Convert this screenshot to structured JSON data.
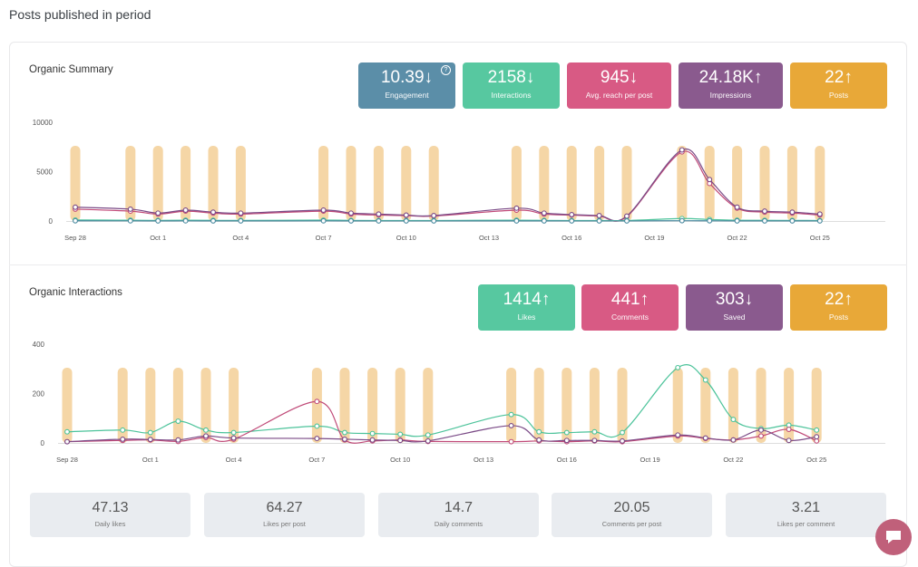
{
  "page": {
    "title": "Posts published in period"
  },
  "summary": {
    "title": "Organic Summary",
    "kpis": [
      {
        "value": "10.39",
        "arrow": "↓",
        "label": "Engagement",
        "color": "#5b8ea8"
      },
      {
        "value": "2158",
        "arrow": "↓",
        "label": "Interactions",
        "color": "#57c8a0"
      },
      {
        "value": "945",
        "arrow": "↓",
        "label": "Avg. reach per post",
        "color": "#d85a84"
      },
      {
        "value": "24.18K",
        "arrow": "↑",
        "label": "Impressions",
        "color": "#8a5a8e"
      },
      {
        "value": "22",
        "arrow": "↑",
        "label": "Posts",
        "color": "#e8a838"
      }
    ],
    "info_icon": "?"
  },
  "interactions": {
    "title": "Organic Interactions",
    "kpis": [
      {
        "value": "1414",
        "arrow": "↑",
        "label": "Likes",
        "color": "#57c8a0"
      },
      {
        "value": "441",
        "arrow": "↑",
        "label": "Comments",
        "color": "#d85a84"
      },
      {
        "value": "303",
        "arrow": "↓",
        "label": "Saved",
        "color": "#8a5a8e"
      },
      {
        "value": "22",
        "arrow": "↑",
        "label": "Posts",
        "color": "#e8a838"
      }
    ]
  },
  "stats": [
    {
      "value": "47.13",
      "label": "Daily likes"
    },
    {
      "value": "64.27",
      "label": "Likes per post"
    },
    {
      "value": "14.7",
      "label": "Daily comments"
    },
    {
      "value": "20.05",
      "label": "Comments per post"
    },
    {
      "value": "3.21",
      "label": "Likes per comment"
    }
  ],
  "chart_data": [
    {
      "type": "line",
      "title": "Organic Summary",
      "x_tick_labels": [
        "Sep 28",
        "Oct 1",
        "Oct 4",
        "Oct 7",
        "Oct 10",
        "Oct 13",
        "Oct 16",
        "Oct 19",
        "Oct 22",
        "Oct 25"
      ],
      "y_ticks": [
        0,
        5000,
        10000
      ],
      "ylim": [
        0,
        10000
      ],
      "post_bar_days": [
        0,
        2,
        3,
        4,
        5,
        6,
        9,
        10,
        11,
        12,
        13,
        16,
        17,
        18,
        19,
        20,
        22,
        23,
        24,
        25,
        26,
        27
      ],
      "bar_color": "#f5d6a6",
      "series": [
        {
          "name": "Reach",
          "color": "#c04a78",
          "points": [
            [
              0,
              1200
            ],
            [
              2,
              1000
            ],
            [
              3,
              700
            ],
            [
              4,
              1000
            ],
            [
              5,
              800
            ],
            [
              6,
              700
            ],
            [
              9,
              1000
            ],
            [
              10,
              700
            ],
            [
              11,
              600
            ],
            [
              12,
              550
            ],
            [
              13,
              500
            ],
            [
              16,
              1100
            ],
            [
              17,
              700
            ],
            [
              18,
              600
            ],
            [
              19,
              500
            ],
            [
              20,
              450
            ],
            [
              22,
              7000
            ],
            [
              23,
              3800
            ],
            [
              24,
              1300
            ],
            [
              25,
              900
            ],
            [
              26,
              800
            ],
            [
              27,
              600
            ]
          ]
        },
        {
          "name": "Impressions",
          "color": "#7a4a86",
          "points": [
            [
              0,
              1400
            ],
            [
              2,
              1200
            ],
            [
              3,
              800
            ],
            [
              4,
              1100
            ],
            [
              5,
              900
            ],
            [
              6,
              800
            ],
            [
              9,
              1100
            ],
            [
              10,
              800
            ],
            [
              11,
              700
            ],
            [
              12,
              600
            ],
            [
              13,
              550
            ],
            [
              16,
              1300
            ],
            [
              17,
              800
            ],
            [
              18,
              650
            ],
            [
              19,
              550
            ],
            [
              20,
              500
            ],
            [
              22,
              7200
            ],
            [
              23,
              4200
            ],
            [
              24,
              1400
            ],
            [
              25,
              1000
            ],
            [
              26,
              900
            ],
            [
              27,
              700
            ]
          ]
        },
        {
          "name": "Interactions",
          "color": "#4cc39a",
          "points": [
            [
              0,
              100
            ],
            [
              2,
              80
            ],
            [
              3,
              60
            ],
            [
              4,
              80
            ],
            [
              5,
              70
            ],
            [
              6,
              60
            ],
            [
              9,
              90
            ],
            [
              10,
              60
            ],
            [
              11,
              50
            ],
            [
              12,
              50
            ],
            [
              13,
              50
            ],
            [
              16,
              80
            ],
            [
              17,
              60
            ],
            [
              18,
              50
            ],
            [
              19,
              50
            ],
            [
              20,
              50
            ],
            [
              22,
              250
            ],
            [
              23,
              150
            ],
            [
              24,
              80
            ],
            [
              25,
              70
            ],
            [
              26,
              60
            ],
            [
              27,
              50
            ]
          ]
        },
        {
          "name": "Engagement",
          "color": "#4a8aa0",
          "points": [
            [
              0,
              20
            ],
            [
              2,
              15
            ],
            [
              3,
              10
            ],
            [
              4,
              15
            ],
            [
              5,
              12
            ],
            [
              6,
              10
            ],
            [
              9,
              15
            ],
            [
              10,
              10
            ],
            [
              11,
              8
            ],
            [
              12,
              8
            ],
            [
              13,
              8
            ],
            [
              16,
              12
            ],
            [
              17,
              10
            ],
            [
              18,
              8
            ],
            [
              19,
              8
            ],
            [
              20,
              8
            ],
            [
              22,
              30
            ],
            [
              23,
              20
            ],
            [
              24,
              12
            ],
            [
              25,
              10
            ],
            [
              26,
              10
            ],
            [
              27,
              8
            ]
          ]
        }
      ]
    },
    {
      "type": "line",
      "title": "Organic Interactions",
      "x_tick_labels": [
        "Sep 28",
        "Oct 1",
        "Oct 4",
        "Oct 7",
        "Oct 10",
        "Oct 13",
        "Oct 16",
        "Oct 19",
        "Oct 22",
        "Oct 25"
      ],
      "y_ticks": [
        0,
        200,
        400
      ],
      "ylim": [
        0,
        400
      ],
      "post_bar_days": [
        0,
        2,
        3,
        4,
        5,
        6,
        9,
        10,
        11,
        12,
        13,
        16,
        17,
        18,
        19,
        20,
        22,
        23,
        24,
        25,
        26,
        27
      ],
      "bar_color": "#f5d6a6",
      "series": [
        {
          "name": "Likes",
          "color": "#4cc39a",
          "points": [
            [
              0,
              45
            ],
            [
              2,
              52
            ],
            [
              3,
              42
            ],
            [
              4,
              88
            ],
            [
              5,
              52
            ],
            [
              6,
              42
            ],
            [
              9,
              68
            ],
            [
              10,
              42
            ],
            [
              11,
              38
            ],
            [
              12,
              35
            ],
            [
              13,
              32
            ],
            [
              16,
              115
            ],
            [
              17,
              45
            ],
            [
              18,
              42
            ],
            [
              19,
              45
            ],
            [
              20,
              42
            ],
            [
              22,
              305
            ],
            [
              23,
              255
            ],
            [
              24,
              95
            ],
            [
              25,
              58
            ],
            [
              26,
              72
            ],
            [
              27,
              52
            ]
          ]
        },
        {
          "name": "Comments",
          "color": "#c04a78",
          "points": [
            [
              0,
              5
            ],
            [
              2,
              10
            ],
            [
              3,
              12
            ],
            [
              4,
              6
            ],
            [
              5,
              22
            ],
            [
              6,
              15
            ],
            [
              9,
              168
            ],
            [
              10,
              12
            ],
            [
              11,
              8
            ],
            [
              12,
              12
            ],
            [
              13,
              6
            ],
            [
              16,
              5
            ],
            [
              17,
              8
            ],
            [
              18,
              5
            ],
            [
              19,
              8
            ],
            [
              20,
              5
            ],
            [
              22,
              28
            ],
            [
              23,
              18
            ],
            [
              24,
              12
            ],
            [
              25,
              28
            ],
            [
              26,
              55
            ],
            [
              27,
              8
            ]
          ]
        },
        {
          "name": "Saved",
          "color": "#7a4a86",
          "points": [
            [
              0,
              5
            ],
            [
              2,
              15
            ],
            [
              3,
              14
            ],
            [
              4,
              12
            ],
            [
              5,
              28
            ],
            [
              6,
              20
            ],
            [
              9,
              18
            ],
            [
              10,
              15
            ],
            [
              11,
              12
            ],
            [
              12,
              10
            ],
            [
              13,
              8
            ],
            [
              16,
              70
            ],
            [
              17,
              12
            ],
            [
              18,
              10
            ],
            [
              19,
              10
            ],
            [
              20,
              8
            ],
            [
              22,
              32
            ],
            [
              23,
              20
            ],
            [
              24,
              12
            ],
            [
              25,
              52
            ],
            [
              26,
              10
            ],
            [
              27,
              25
            ]
          ]
        }
      ]
    }
  ]
}
